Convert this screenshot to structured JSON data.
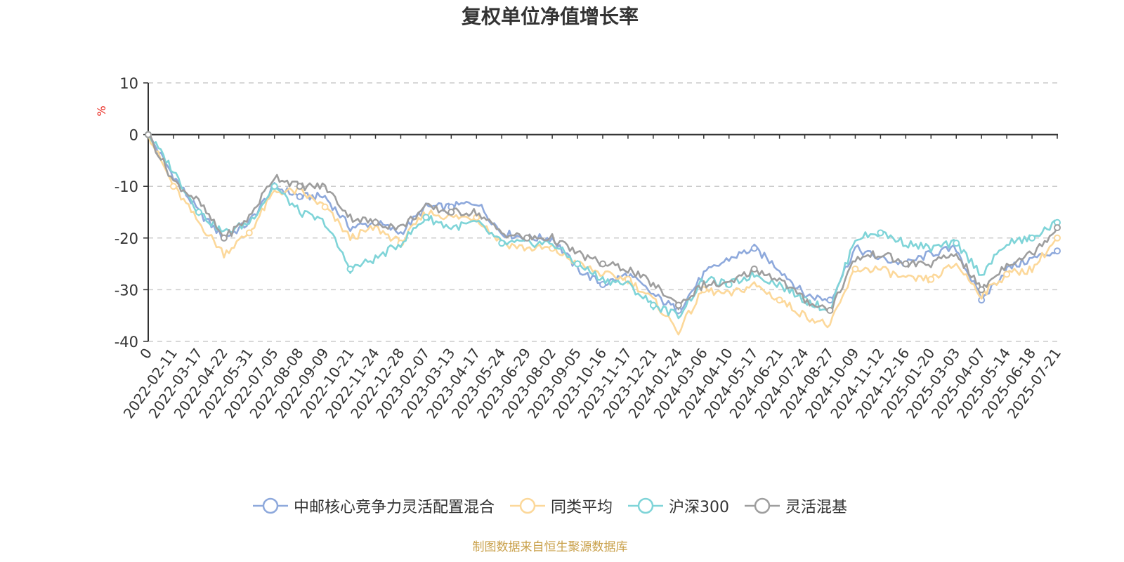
{
  "title": "复权单位净值增长率",
  "source_note": "制图数据来自恒生聚源数据库",
  "colors": {
    "series1": "#8ea9dc",
    "series2": "#fcd89a",
    "series3": "#7fd4d8",
    "series4": "#9e9e9e",
    "grid": "#cccccc",
    "unit": "#e8231a"
  },
  "chart_data": {
    "type": "line",
    "title": "复权单位净值增长率",
    "ylabel": "%",
    "ylim": [
      -40,
      10
    ],
    "yticks": [
      10,
      0,
      -10,
      -20,
      -30,
      -40
    ],
    "grid": true,
    "legend_position": "bottom",
    "x_tick_labels": [
      "0",
      "2022-02-11",
      "2022-03-17",
      "2022-04-22",
      "2022-05-31",
      "2022-07-05",
      "2022-08-08",
      "2022-09-09",
      "2022-10-21",
      "2022-11-24",
      "2022-12-28",
      "2023-02-07",
      "2023-03-13",
      "2023-04-17",
      "2023-05-24",
      "2023-06-29",
      "2023-08-02",
      "2023-09-05",
      "2023-10-16",
      "2023-11-17",
      "2023-12-21",
      "2024-01-24",
      "2024-03-06",
      "2024-04-10",
      "2024-05-17",
      "2024-06-21",
      "2024-07-24",
      "2024-08-27",
      "2024-10-09",
      "2024-11-12",
      "2024-12-16",
      "2025-01-20",
      "2025-03-03",
      "2025-04-07",
      "2025-05-14",
      "2025-06-18",
      "2025-07-21"
    ],
    "series": [
      {
        "name": "中邮核心竞争力灵活配置混合",
        "values": [
          0,
          -8,
          -15,
          -20,
          -17,
          -10,
          -12,
          -12,
          -18,
          -17,
          -19,
          -14,
          -14,
          -13,
          -19,
          -20,
          -20,
          -26,
          -29,
          -27,
          -31,
          -34,
          -27,
          -24,
          -22,
          -26,
          -31,
          -32,
          -22,
          -24,
          -25,
          -23,
          -22,
          -32,
          -26,
          -24,
          -22.5
        ]
      },
      {
        "name": "同类平均",
        "values": [
          0,
          -10,
          -17,
          -23,
          -19,
          -11,
          -11,
          -14,
          -20,
          -18,
          -21,
          -15,
          -16,
          -16,
          -21,
          -22,
          -22,
          -25,
          -27,
          -28,
          -32,
          -38,
          -30,
          -31,
          -29,
          -32,
          -35,
          -37,
          -26,
          -26,
          -28,
          -28,
          -25,
          -31,
          -27,
          -26,
          -20
        ]
      },
      {
        "name": "沪深300",
        "values": [
          0,
          -7,
          -15,
          -19,
          -17,
          -10,
          -15,
          -17,
          -26,
          -24,
          -21,
          -16,
          -18,
          -17,
          -21,
          -21,
          -21,
          -25,
          -28,
          -29,
          -33,
          -35,
          -28,
          -29,
          -27,
          -29,
          -32,
          -34,
          -20,
          -19,
          -21,
          -22,
          -21,
          -27,
          -21,
          -20,
          -17
        ]
      },
      {
        "name": "灵活混基",
        "values": [
          0,
          -9,
          -13,
          -20,
          -16,
          -8,
          -10,
          -10,
          -16,
          -17,
          -18,
          -14,
          -15,
          -15,
          -19,
          -20,
          -20,
          -23,
          -25,
          -26,
          -29,
          -33,
          -29,
          -29,
          -26,
          -28,
          -32,
          -34,
          -24,
          -23,
          -25,
          -25,
          -23,
          -30,
          -25,
          -23,
          -18
        ]
      }
    ]
  }
}
